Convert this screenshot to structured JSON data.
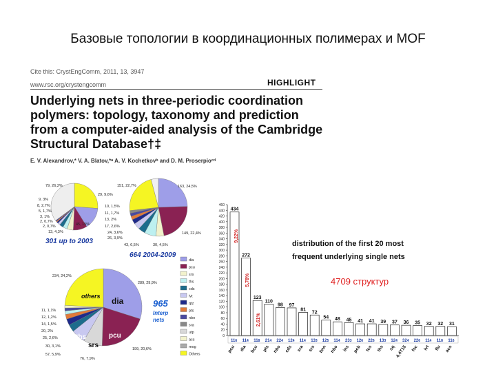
{
  "slide_title": "Базовые топологии в координационных полимерах и MOF",
  "cite_line": "Cite this: CrystEngComm, 2011, 13, 3947",
  "url_line": "www.rsc.org/crystengcomm",
  "highlight": "HIGHLIGHT",
  "paper_title": "Underlying nets in three-periodic coordination polymers: topology, taxonomy and prediction from a computer-aided analysis of the Cambridge Structural Database†‡",
  "authors": "E. V. Alexandrov,* V. A. Blatov,*ᵃ A. V. Kochetkovᵇ and D. M. Proserpioᶜᵈ",
  "pie_small": {
    "caption": "301 up to 2003",
    "labels": [
      "79, 26,2%",
      "29, 9,6%",
      "9, 3%",
      "8, 2,7%",
      "5, 1,7%",
      "3, 1%",
      "2, 0,7%",
      "2, 0,7%",
      "13, 4,3%",
      "45, 15%"
    ]
  },
  "pie_medium": {
    "caption": "664  2004-2009",
    "labels": [
      "151, 22,7%",
      "163, 24,5%",
      "10, 1,5%",
      "11, 1,7%",
      "13, 2%",
      "17, 2,6%",
      "24, 3,6%",
      "26, 3,9%",
      "43, 6,5%",
      "30, 4,5%",
      "149, 22,4%"
    ]
  },
  "pie_large": {
    "center_number": "965",
    "center_text": "Interp nets",
    "slice_labels": [
      "others",
      "dia",
      "pcu",
      "ths",
      "srs"
    ],
    "labels": [
      "234, 24,2%",
      "289, 29,9%",
      "11, 1,1%",
      "12, 1,2%",
      "14, 1,5%",
      "20, 2%",
      "25, 2,6%",
      "30, 3,1%",
      "57, 5,9%",
      "76, 7,9%",
      "199, 20,6%"
    ]
  },
  "legend": [
    "dia",
    "pcu",
    "srs",
    "ths",
    "cds",
    "lvt",
    "qtz",
    "pts",
    "nbo",
    "sra",
    "utp",
    "acs",
    "mog",
    "Others"
  ],
  "colors": {
    "yellow": "#f5f523",
    "blue": "#9e9ee8",
    "purple": "#8a2253",
    "pale": "#f2f2cc",
    "cyan": "#bdf0f0",
    "teal": "#1c6c8c",
    "lavender": "#c8c8f0",
    "navy": "#1e2a8a",
    "orange": "#e07a3a",
    "red": "#e02020",
    "accent": "#1a5fd0"
  },
  "chart_data": {
    "type": "bar",
    "title": "distribution of the first 20 most frequent underlying single nets",
    "annotation": "4709 структур",
    "categories": [
      "pcu",
      "dia",
      "bcu",
      "pts",
      "nbo",
      "cds",
      "sra",
      "srs",
      "bnn",
      "nbo",
      "ins",
      "pcb",
      "tcs",
      "ths",
      "sq",
      "4,4T15",
      "fsc",
      "lvt",
      "flu",
      "acs"
    ],
    "values": [
      434,
      272,
      123,
      110,
      98,
      97,
      81,
      72,
      54,
      48,
      45,
      41,
      41,
      39,
      37,
      36,
      35,
      32,
      32,
      31
    ],
    "coordination": [
      "6",
      "4",
      "8",
      "4",
      "4",
      "4",
      "4",
      "3",
      "5",
      "4",
      "3",
      "6",
      "6",
      "3",
      "4",
      "4",
      "6",
      "4",
      "8",
      "6"
    ],
    "coordination_prefixes": [
      "11",
      "11",
      "11",
      "21",
      "22",
      "12",
      "11",
      "13",
      "12",
      "11",
      "23",
      "12",
      "22",
      "13",
      "12",
      "32",
      "22",
      "11",
      "11",
      "11"
    ],
    "percent_labels": [
      "9,22%",
      "5,78%",
      "2,61%"
    ],
    "yticks": [
      0,
      20,
      40,
      60,
      80,
      100,
      120,
      140,
      160,
      180,
      200,
      220,
      240,
      260,
      280,
      300,
      320,
      340,
      360,
      380,
      400,
      420,
      440,
      460
    ],
    "ylim": [
      0,
      460
    ]
  }
}
